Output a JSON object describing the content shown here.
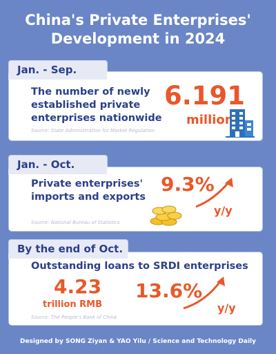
{
  "title": {
    "line1": "China's Private Enterprises'",
    "line2": "Development in 2024"
  },
  "sections": [
    {
      "period": "Jan. - Sep.",
      "desc_lines": [
        "The number of newly",
        "established private",
        "enterprises nationwide"
      ],
      "value": "6.191",
      "unit": "million",
      "source": "Source: State Administration for Market Regulation",
      "icon": "building-icon"
    },
    {
      "period": "Jan. - Oct.",
      "desc_lines": [
        "Private enterprises'",
        "imports and exports"
      ],
      "value": "9.3%",
      "unit": "y/y",
      "source": "Source: National Bureau of Statistics",
      "icons": [
        "coins-icon",
        "up-arrow-icon"
      ]
    },
    {
      "period": "By the end of Oct.",
      "desc_lines": [
        "Outstanding loans to SRDI enterprises"
      ],
      "value": "4.23",
      "value_unit": "trillion RMB",
      "growth": "13.6%",
      "growth_unit": "y/y",
      "source": "Source: The People's Bank of China",
      "icon": "up-arrow-icon"
    }
  ],
  "footer": "Designed by SONG Ziyan & YAO Yilu / Science and Technology Daily",
  "colors": {
    "background": "#6a86c6",
    "accent": "#e9582a",
    "heading_text": "#2c3f8a",
    "tab_background": "#e7eaf5"
  }
}
